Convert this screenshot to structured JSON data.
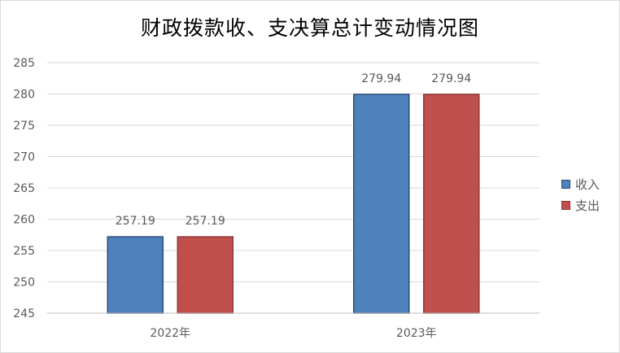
{
  "chart_data": {
    "type": "bar",
    "title": "财政拨款收、支决算总计变动情况图",
    "categories": [
      "2022年",
      "2023年"
    ],
    "series": [
      {
        "name": "收入",
        "values": [
          257.19,
          279.94
        ],
        "color": "#4f81bd",
        "border": "#2c4d75"
      },
      {
        "name": "支出",
        "values": [
          257.19,
          279.94
        ],
        "color": "#c0504d",
        "border": "#8c3836"
      }
    ],
    "data_labels": [
      [
        "257.19",
        "279.94"
      ],
      [
        "257.19",
        "279.94"
      ]
    ],
    "ylim": [
      245,
      285
    ],
    "yticks": [
      245,
      250,
      255,
      260,
      265,
      270,
      275,
      280,
      285
    ],
    "xlabel": "",
    "ylabel": "",
    "grid": true,
    "legend_position": "right",
    "gridline_color": "#d9d9d9"
  }
}
